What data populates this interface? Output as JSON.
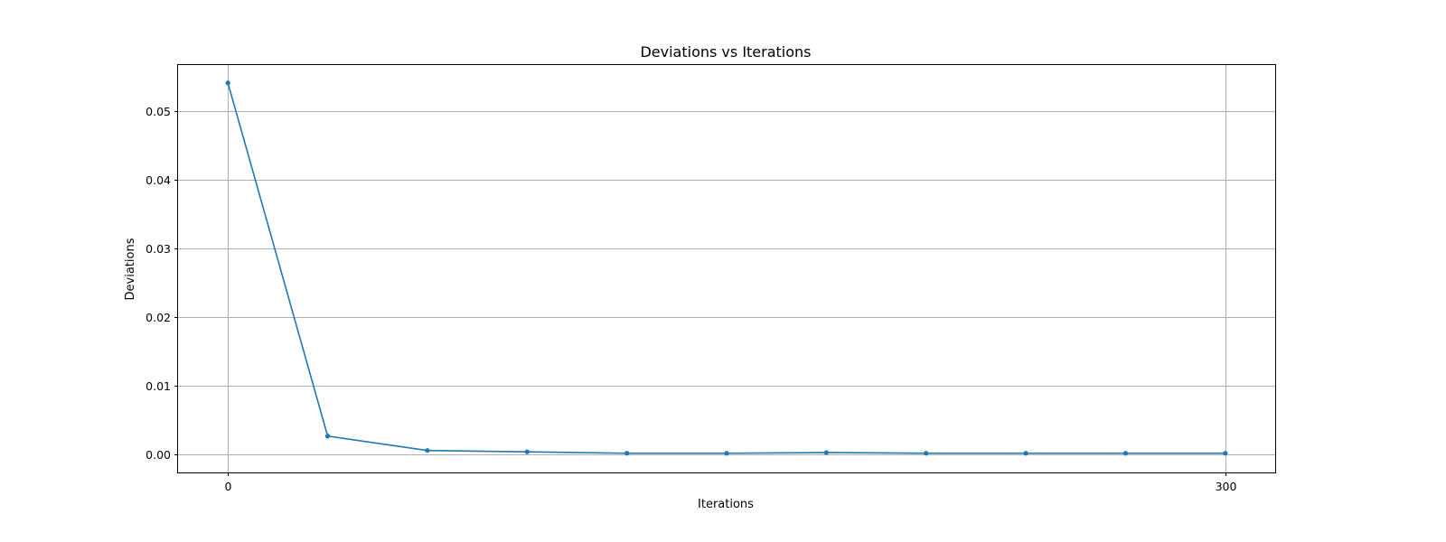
{
  "chart_data": {
    "type": "line",
    "title": "Deviations vs Iterations",
    "xlabel": "Iterations",
    "ylabel": "Deviations",
    "xlim": [
      -15,
      315
    ],
    "ylim": [
      -0.0027,
      0.0567
    ],
    "x_ticks": [
      0,
      300
    ],
    "x_tick_labels": [
      "0",
      "300"
    ],
    "y_ticks": [
      0.0,
      0.01,
      0.02,
      0.03,
      0.04,
      0.05
    ],
    "y_tick_labels": [
      "0.00",
      "0.01",
      "0.02",
      "0.03",
      "0.04",
      "0.05"
    ],
    "grid": true,
    "line_color": "#1f77b4",
    "marker": "circle",
    "series": [
      {
        "x": [
          0,
          30,
          60,
          90,
          120,
          150,
          180,
          210,
          240,
          270,
          300
        ],
        "values": [
          0.0541,
          0.0026,
          0.0005,
          0.0003,
          0.0001,
          0.0001,
          0.0002,
          0.0001,
          0.0001,
          0.0001,
          0.0001
        ]
      }
    ]
  }
}
